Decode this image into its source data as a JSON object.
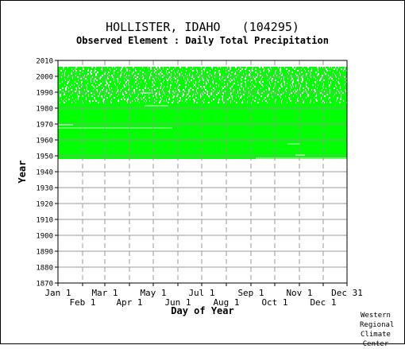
{
  "title": "HOLLISTER, IDAHO   (104295)",
  "subtitle": "Observed Element : Daily Total Precipitation",
  "credit": [
    "Western",
    "Regional",
    "Climate",
    "Center"
  ],
  "chart_data": {
    "type": "heatmap",
    "title": "HOLLISTER, IDAHO   (104295)",
    "subtitle": "Observed Element : Daily Total Precipitation",
    "xlabel": "Day of Year",
    "ylabel": "Year",
    "xlim": [
      1,
      365
    ],
    "ylim": [
      1870,
      2010
    ],
    "grid": true,
    "colors": {
      "observed": "#00ff00",
      "grid": "#999999",
      "axis": "#000000"
    },
    "x_ticks_row1": [
      {
        "label": "Jan 1",
        "day": 1
      },
      {
        "label": "Mar 1",
        "day": 60
      },
      {
        "label": "May 1",
        "day": 121
      },
      {
        "label": "Jul 1",
        "day": 182
      },
      {
        "label": "Sep 1",
        "day": 244
      },
      {
        "label": "Nov 1",
        "day": 305
      },
      {
        "label": "Dec 31",
        "day": 365
      }
    ],
    "x_ticks_row2": [
      {
        "label": "Feb 1",
        "day": 32
      },
      {
        "label": "Apr 1",
        "day": 91
      },
      {
        "label": "Jun 1",
        "day": 152
      },
      {
        "label": "Aug 1",
        "day": 213
      },
      {
        "label": "Oct 1",
        "day": 274
      },
      {
        "label": "Dec 1",
        "day": 335
      }
    ],
    "y_ticks": [
      1870,
      1880,
      1890,
      1900,
      1910,
      1920,
      1930,
      1940,
      1950,
      1960,
      1970,
      1980,
      1990,
      2000,
      2010
    ],
    "coverage": {
      "start_year": 1948,
      "end_year": 2005,
      "dense_from_year": 1948,
      "dense_to_year": 1982,
      "sparse_from_year": 1983,
      "sparse_to_year": 2005
    },
    "gaps": [
      {
        "year": 1967,
        "day_start": 1,
        "day_end": 145
      },
      {
        "year": 1969,
        "day_start": 1,
        "day_end": 20
      },
      {
        "year": 1981,
        "day_start": 110,
        "day_end": 140
      },
      {
        "year": 1989,
        "day_start": 105,
        "day_end": 118
      },
      {
        "year": 1957,
        "day_start": 290,
        "day_end": 306
      },
      {
        "year": 1950,
        "day_start": 300,
        "day_end": 312
      },
      {
        "year": 1948,
        "day_start": 250,
        "day_end": 365
      }
    ]
  }
}
